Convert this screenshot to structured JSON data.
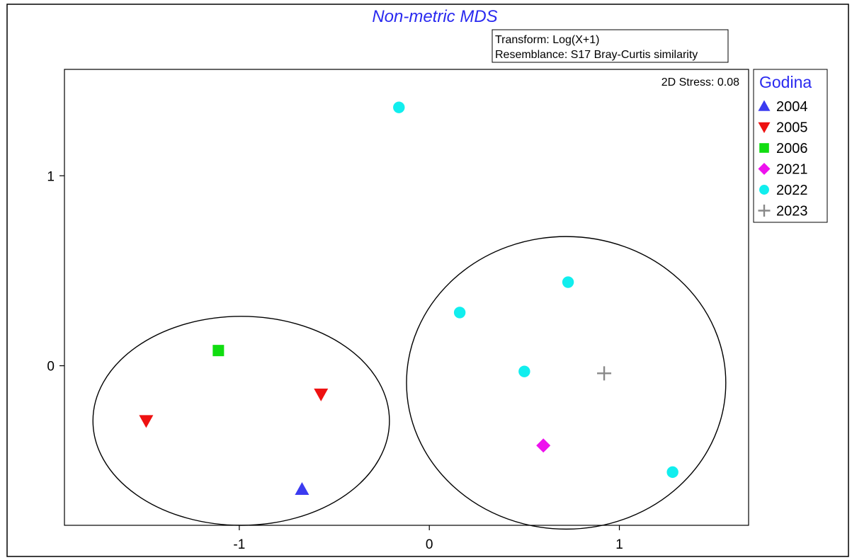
{
  "chart_data": {
    "type": "scatter",
    "title": "Non-metric MDS",
    "info_lines": [
      "Transform: Log(X+1)",
      "Resemblance: S17 Bray-Curtis similarity"
    ],
    "stress_text": "2D Stress: 0.08",
    "xlabel": "",
    "ylabel": "",
    "x_ticks": [
      -1,
      0,
      1
    ],
    "y_ticks": [
      0,
      1
    ],
    "xlim": [
      -1.92,
      1.68
    ],
    "ylim": [
      -0.84,
      1.56
    ],
    "grid": false,
    "legend": {
      "title": "Godina",
      "placement": "right"
    },
    "series": [
      {
        "name": "2004",
        "marker": "triangle-up",
        "color": "#3b3bf0",
        "points": [
          [
            -0.67,
            -0.65
          ]
        ]
      },
      {
        "name": "2005",
        "marker": "triangle-down",
        "color": "#ee1111",
        "points": [
          [
            -1.49,
            -0.29
          ],
          [
            -0.57,
            -0.15
          ]
        ]
      },
      {
        "name": "2006",
        "marker": "square",
        "color": "#11dd11",
        "points": [
          [
            -1.11,
            0.08
          ]
        ]
      },
      {
        "name": "2021",
        "marker": "diamond",
        "color": "#ee11ee",
        "points": [
          [
            0.6,
            -0.42
          ]
        ]
      },
      {
        "name": "2022",
        "marker": "circle",
        "color": "#11eeee",
        "points": [
          [
            -0.16,
            1.36
          ],
          [
            0.16,
            0.28
          ],
          [
            0.5,
            -0.03
          ],
          [
            0.73,
            0.44
          ],
          [
            1.28,
            -0.56
          ]
        ]
      },
      {
        "name": "2023",
        "marker": "plus",
        "color": "#888888",
        "points": [
          [
            0.92,
            -0.04
          ]
        ]
      }
    ],
    "ellipses": [
      {
        "cx": -0.99,
        "cy": -0.29,
        "rx": 0.78,
        "ry": 0.55
      },
      {
        "cx": 0.72,
        "cy": -0.09,
        "rx": 0.84,
        "ry": 0.77
      }
    ]
  }
}
